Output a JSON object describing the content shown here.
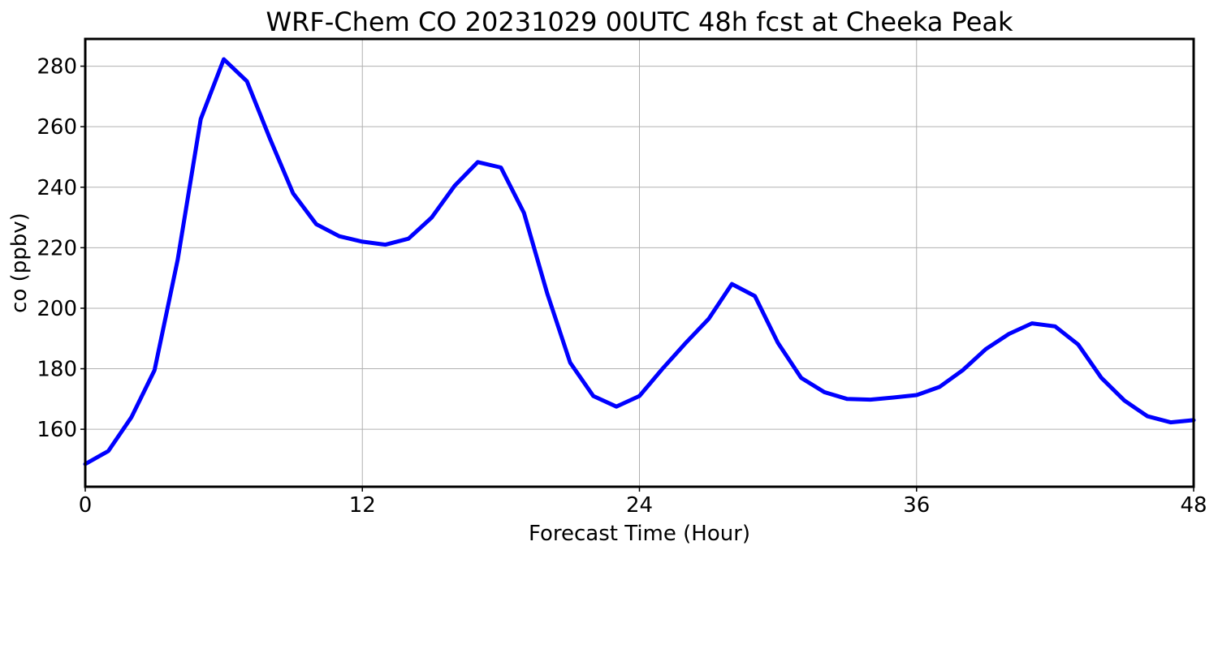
{
  "chart_data": {
    "type": "line",
    "title": "WRF-Chem CO  20231029 00UTC 48h fcst at Cheeka Peak",
    "xlabel": "Forecast Time (Hour)",
    "ylabel": "co  (ppbv)",
    "xlim": [
      0,
      48
    ],
    "ylim": [
      141,
      289
    ],
    "xticks": [
      0,
      12,
      24,
      36,
      48
    ],
    "yticks": [
      160,
      180,
      200,
      220,
      240,
      260,
      280
    ],
    "grid": true,
    "x": [
      0,
      1,
      2,
      3,
      4,
      5,
      6,
      7,
      8,
      9,
      10,
      11,
      12,
      13,
      14,
      15,
      16,
      17,
      18,
      19,
      20,
      21,
      22,
      23,
      24,
      25,
      26,
      27,
      28,
      29,
      30,
      31,
      32,
      33,
      34,
      35,
      36,
      37,
      38,
      39,
      40,
      41,
      42,
      43,
      44,
      45,
      46,
      47,
      48
    ],
    "series": [
      {
        "color": "#0000ff",
        "values": [
          148.5,
          152.8,
          164,
          179.5,
          216,
          262.5,
          282.3,
          275,
          256,
          238,
          227.8,
          223.8,
          222,
          221,
          223,
          230,
          240.5,
          248.3,
          246.5,
          231.5,
          205,
          182,
          171,
          167.5,
          171,
          180,
          188.5,
          196.5,
          208,
          204,
          188.5,
          177,
          172.3,
          170,
          169.8,
          170.5,
          171.3,
          174,
          179.5,
          186.5,
          191.5,
          195,
          194,
          188,
          177,
          169.5,
          164.3,
          162.3,
          163
        ]
      }
    ]
  }
}
